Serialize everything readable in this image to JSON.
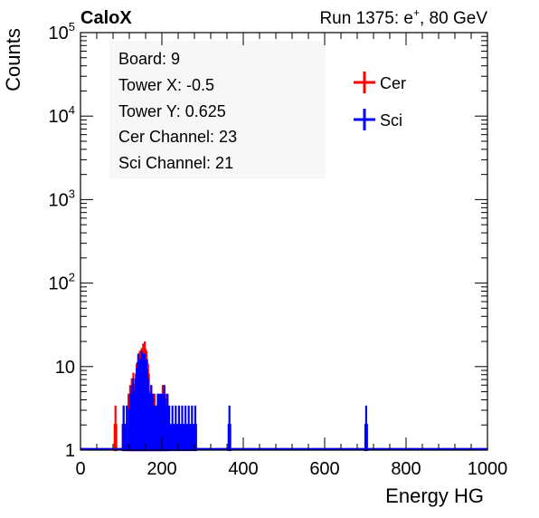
{
  "chart_data": {
    "type": "line",
    "title_left": "CaloX",
    "title_right": "Run 1375: e",
    "title_right_sup": "+",
    "title_right_tail": ", 80 GeV",
    "xlabel": "Energy HG",
    "ylabel": "Counts",
    "xlim": [
      0,
      1000
    ],
    "ylim": [
      1,
      100000
    ],
    "y_scale": "log",
    "x_ticks": [
      "0",
      "200",
      "400",
      "600",
      "800",
      "1000"
    ],
    "grid": false,
    "legend_position": "top-right",
    "info_lines": [
      "Board: 9",
      "Tower X: -0.5",
      "Tower Y: 0.625",
      "Cer Channel: 23",
      "Sci Channel: 21"
    ],
    "series": [
      {
        "name": "Cer",
        "color": "#ff0000",
        "x": [
          72,
          76,
          80,
          84,
          88,
          92,
          96,
          100,
          104,
          108,
          112,
          116,
          120,
          124,
          128,
          132,
          136,
          140,
          144,
          148,
          152,
          156,
          160,
          164,
          168,
          172,
          176,
          180,
          184,
          188,
          192,
          196,
          200,
          204,
          208,
          212,
          216,
          220,
          224,
          228,
          232,
          236,
          240,
          244,
          248,
          252,
          256,
          260,
          264,
          268,
          272,
          276,
          280,
          284,
          288,
          292,
          296,
          300
        ],
        "y": [
          1,
          1,
          1,
          2,
          1,
          1,
          1,
          1,
          2,
          1,
          2,
          3,
          4,
          5,
          6,
          4,
          8,
          10,
          12,
          13,
          15,
          16,
          12,
          8,
          3,
          4,
          3,
          3,
          2,
          3,
          2,
          2,
          4,
          4,
          3,
          2,
          1,
          1,
          1,
          1,
          1,
          1,
          1,
          1,
          1,
          1,
          1,
          1,
          1,
          1,
          1,
          1,
          1,
          1,
          1,
          1,
          1,
          1
        ]
      },
      {
        "name": "Sci",
        "color": "#0000ff",
        "x": [
          72,
          76,
          80,
          84,
          88,
          92,
          96,
          100,
          104,
          108,
          112,
          116,
          120,
          124,
          128,
          132,
          136,
          140,
          144,
          148,
          152,
          156,
          160,
          164,
          168,
          172,
          176,
          180,
          184,
          188,
          192,
          196,
          200,
          204,
          208,
          212,
          216,
          220,
          224,
          228,
          232,
          236,
          240,
          244,
          248,
          252,
          256,
          260,
          264,
          268,
          272,
          276,
          280,
          284,
          288,
          292,
          296,
          300,
          364,
          368,
          700,
          704
        ],
        "y": [
          1,
          1,
          1,
          1,
          1,
          1,
          1,
          1,
          2,
          1,
          2,
          1,
          3,
          4,
          5,
          3,
          7,
          11,
          9,
          12,
          11,
          11,
          9,
          5,
          3,
          4,
          3,
          2,
          2,
          3,
          3,
          3,
          3,
          4,
          2,
          3,
          2,
          1,
          2,
          1,
          2,
          1,
          2,
          1,
          2,
          1,
          2,
          1,
          2,
          1,
          2,
          1,
          2,
          1,
          1,
          1,
          1,
          1,
          2,
          1,
          2,
          1
        ]
      }
    ]
  }
}
